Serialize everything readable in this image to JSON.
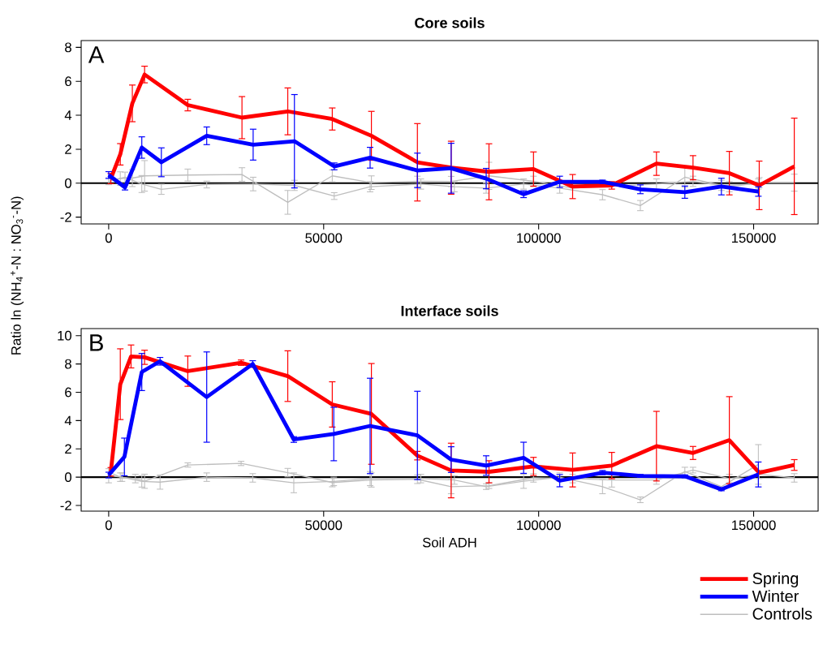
{
  "chart_data": [
    {
      "type": "line",
      "title": "Core soils",
      "annotations": [
        "A"
      ],
      "xlim": [
        -6400,
        165000
      ],
      "ylim": [
        -2.4,
        8.4
      ],
      "xticks": [
        0,
        50000,
        100000,
        150000
      ],
      "yticks": [
        -2,
        0,
        2,
        4,
        6,
        8
      ],
      "marker": "none",
      "line_style": "solid",
      "ref_lines": [
        {
          "axis": "y",
          "value": 0,
          "color": "#000000"
        }
      ],
      "series": [
        {
          "color": "#ff0000",
          "x": [
            500,
            2700,
            5500,
            8350,
            18400,
            31000,
            41650,
            52000,
            61100,
            71800,
            79650,
            88450,
            98800,
            107900,
            117000,
            127400,
            135900,
            144350,
            151300,
            159450
          ],
          "values": [
            0.27,
            1.7,
            4.7,
            6.4,
            4.6,
            3.86,
            4.23,
            3.78,
            2.79,
            1.23,
            0.91,
            0.67,
            0.83,
            -0.2,
            -0.13,
            1.15,
            0.91,
            0.59,
            -0.13,
            0.99
          ],
          "errors": [
            0.3,
            0.63,
            1.08,
            0.49,
            0.34,
            1.24,
            1.38,
            0.65,
            1.44,
            2.28,
            1.56,
            1.65,
            1.01,
            0.71,
            0.22,
            0.69,
            0.71,
            1.28,
            1.43,
            2.84
          ]
        },
        {
          "color": "#0000ff",
          "x": [
            0,
            3800,
            7700,
            12250,
            22800,
            33600,
            43200,
            52450,
            60800,
            71800,
            79650,
            87800,
            96500,
            104900,
            114850,
            123650,
            134000,
            142500,
            151100
          ],
          "values": [
            0.48,
            -0.25,
            2.1,
            1.23,
            2.79,
            2.27,
            2.47,
            0.99,
            1.5,
            0.75,
            0.88,
            0.27,
            -0.65,
            0.08,
            0.08,
            -0.36,
            -0.53,
            -0.2,
            -0.49
          ],
          "errors": [
            0.2,
            0.15,
            0.63,
            0.85,
            0.52,
            0.91,
            2.75,
            0.2,
            0.61,
            1.02,
            1.47,
            0.6,
            0.2,
            0.33,
            0.1,
            0.26,
            0.36,
            0.49,
            0.28
          ]
        },
        {
          "color": "#bebebe",
          "x": [
            500,
            2700,
            5500,
            8350,
            18400,
            31000,
            41650,
            52000,
            61100,
            71800,
            79650,
            88450,
            98800,
            107900,
            117000,
            127400,
            135900,
            144350,
            151300,
            159450
          ],
          "values": [
            0.19,
            0.27,
            0.3,
            0.43,
            0.48,
            0.51,
            -1.13,
            0.43,
            0.03,
            0.11,
            0.1,
            0.43,
            0.11,
            -0.29,
            null,
            -0.05,
            0.11,
            -0.21,
            0.03,
            0.03
          ],
          "errors": [
            null,
            0.4,
            0.5,
            0.9,
            0.35,
            0.4,
            0.7,
            0.35,
            0.4,
            0.3,
            0.3,
            0.8,
            0.3,
            null,
            null,
            0.3,
            0.3,
            0.3,
            0.3,
            0.5
          ]
        },
        {
          "color": "#bebebe",
          "x": [
            0,
            3800,
            7700,
            12250,
            22800,
            33600,
            43200,
            52450,
            60800,
            72600,
            80400,
            87800,
            96500,
            104900,
            114850,
            123650,
            134000,
            142500,
            151100
          ],
          "values": [
            0.11,
            0.35,
            -0.05,
            -0.36,
            -0.08,
            -0.05,
            -0.13,
            -0.76,
            -0.21,
            -0.05,
            -0.21,
            -0.29,
            -0.05,
            -0.29,
            -0.68,
            -1.32,
            0.35,
            -0.13,
            -0.05
          ],
          "errors": [
            0.2,
            0.3,
            0.5,
            0.3,
            0.2,
            0.4,
            0.3,
            0.2,
            0.3,
            0.3,
            0.3,
            0.3,
            0.3,
            0.3,
            0.3,
            0.3,
            0.6,
            0.3,
            0.3
          ]
        }
      ]
    },
    {
      "type": "line",
      "title": "Interface soils",
      "annotations": [
        "B"
      ],
      "xlabel": "Soil ADH",
      "ylabel": "Ratio ln (NH$_{4}$$^{+}$-N : NO$_{3}$$^{-}$-N)",
      "xlim": [
        -6400,
        165000
      ],
      "ylim": [
        -2.4,
        10.5
      ],
      "xticks": [
        0,
        50000,
        100000,
        150000
      ],
      "yticks": [
        -2,
        0,
        2,
        4,
        6,
        8,
        10
      ],
      "marker": "none",
      "line_style": "solid",
      "legend": "bottom right",
      "ref_lines": [
        {
          "axis": "y",
          "value": 0,
          "color": "#000000"
        }
      ],
      "series": [
        {
          "name": "Spring",
          "color": "#ff0000",
          "x": [
            500,
            2700,
            5200,
            8350,
            18400,
            30800,
            41650,
            52000,
            61100,
            71800,
            79650,
            88450,
            98800,
            107900,
            117000,
            127400,
            135900,
            144350,
            151300,
            159450
          ],
          "values": [
            0.38,
            6.57,
            8.53,
            8.47,
            7.49,
            8.09,
            7.14,
            5.14,
            4.47,
            1.52,
            0.47,
            0.38,
            0.76,
            0.51,
            0.82,
            2.19,
            1.71,
            2.61,
            0.32,
            0.86
          ],
          "errors": [
            0.3,
            2.5,
            0.81,
            0.5,
            1.07,
            0.19,
            1.79,
            1.6,
            3.56,
            0.3,
            1.93,
            0.78,
            0.64,
            1.2,
            0.93,
            2.46,
            0.46,
            3.08,
            null,
            0.38
          ]
        },
        {
          "name": "Winter",
          "color": "#0000ff",
          "x": [
            0,
            3650,
            7700,
            11950,
            22800,
            33500,
            43050,
            52350,
            60800,
            71800,
            79650,
            87800,
            96500,
            104900,
            114850,
            123650,
            134000,
            142500,
            151100
          ],
          "values": [
            0.15,
            1.43,
            7.43,
            8.19,
            5.66,
            8.0,
            2.66,
            3.05,
            3.62,
            2.95,
            1.24,
            0.82,
            1.37,
            -0.25,
            0.32,
            0.09,
            0.06,
            -0.86,
            0.19
          ],
          "errors": [
            0.2,
            1.33,
            1.31,
            0.27,
            3.19,
            0.23,
            0.2,
            1.89,
            3.37,
            3.12,
            0.91,
            0.69,
            1.1,
            0.43,
            0.15,
            0.1,
            0.1,
            0.1,
            0.88
          ]
        },
        {
          "name": "Controls",
          "color": "#bebebe",
          "x": [
            500,
            2700,
            6200,
            8350,
            18400,
            30800,
            41650,
            52000,
            61100,
            71800,
            79650,
            88450,
            98800,
            107900,
            117000,
            127400,
            135900,
            144350,
            151300,
            159450
          ],
          "values": [
            0.3,
            0.0,
            -0.1,
            -0.29,
            0.86,
            0.97,
            0.32,
            -0.38,
            -0.2,
            -0.15,
            -0.67,
            -0.6,
            -0.05,
            -0.1,
            -0.2,
            -0.2,
            0.5,
            -0.1,
            0.2,
            -0.05
          ],
          "errors": [
            null,
            0.3,
            0.3,
            0.5,
            0.15,
            0.15,
            0.3,
            0.3,
            0.5,
            0.3,
            0.5,
            0.2,
            0.3,
            0.3,
            0.5,
            0.3,
            0.2,
            0.3,
            0.3,
            0.3
          ]
        },
        {
          "color": "#bebebe",
          "x": [
            0,
            3100,
            7700,
            11950,
            22800,
            33500,
            43050,
            52350,
            60800,
            72600,
            80400,
            87800,
            96500,
            104900,
            114850,
            123650,
            134000,
            142500,
            151100
          ],
          "values": [
            0.1,
            0.0,
            -0.3,
            -0.35,
            0.0,
            -0.05,
            -0.4,
            -0.3,
            -0.1,
            -0.1,
            -0.2,
            -0.67,
            -0.29,
            0.0,
            -0.67,
            -1.6,
            0.4,
            -0.67,
            0.9
          ],
          "errors": [
            0.5,
            0.3,
            0.4,
            0.5,
            0.3,
            0.3,
            0.7,
            0.3,
            0.5,
            0.3,
            0.3,
            0.2,
            0.5,
            0.3,
            0.5,
            0.2,
            0.3,
            null,
            1.4
          ]
        }
      ]
    }
  ]
}
